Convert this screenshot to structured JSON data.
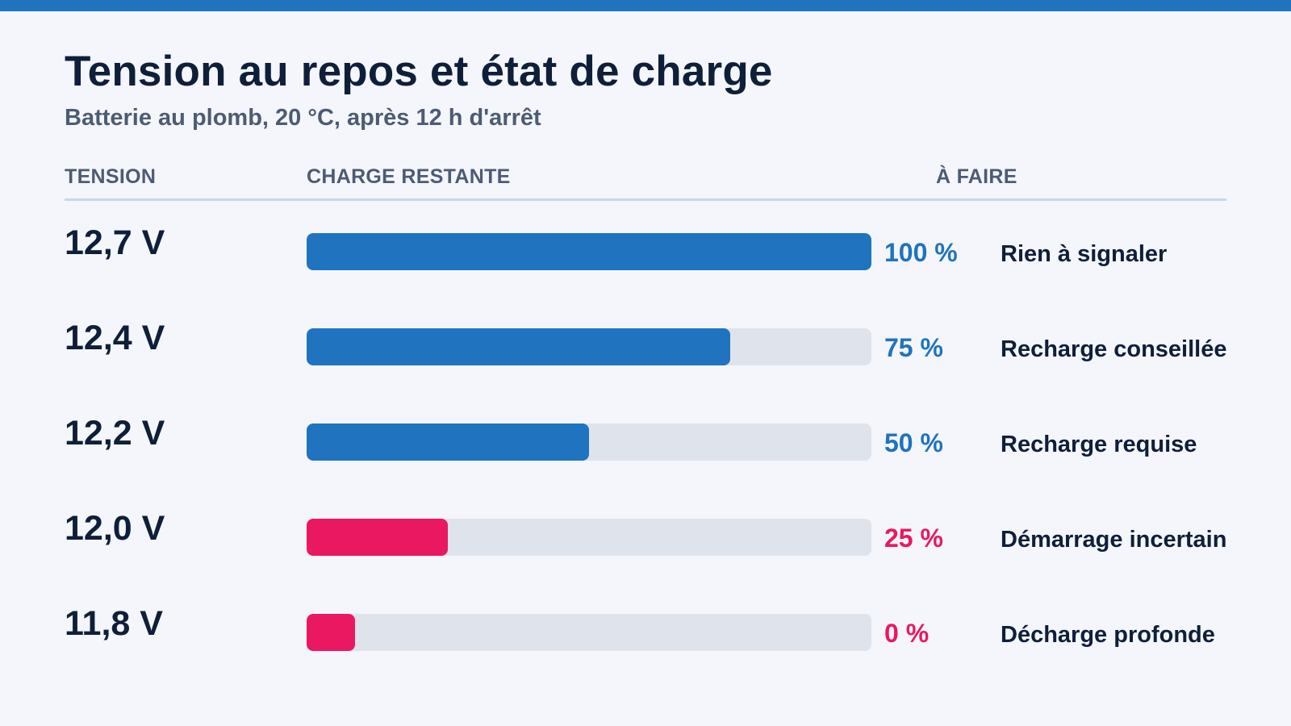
{
  "title": "Tension au repos et état de charge",
  "subtitle": "Batterie au plomb, 20 °C, après 12 h d'arrêt",
  "columns": {
    "tension": "TENSION",
    "charge": "CHARGE RESTANTE",
    "action": "À FAIRE"
  },
  "colors": {
    "accent": "#1f73bf",
    "alert": "#ea1860",
    "track": "#dfe3ec"
  },
  "chart_data": {
    "type": "bar",
    "orientation": "horizontal",
    "categories": [
      "12,7 V",
      "12,4 V",
      "12,2 V",
      "12,0 V",
      "11,8 V"
    ],
    "values": [
      100,
      75,
      50,
      25,
      0
    ],
    "value_labels": [
      "100 %",
      "75 %",
      "50 %",
      "25 %",
      "0 %"
    ],
    "actions": [
      "Rien à signaler",
      "Recharge conseillée",
      "Recharge requise",
      "Démarrage incertain",
      "Décharge profonde"
    ],
    "status": [
      "ok",
      "ok",
      "ok",
      "alert",
      "alert"
    ],
    "xlim": [
      0,
      100
    ],
    "grid": false,
    "title": "Tension au repos et état de charge",
    "subtitle": "Batterie au plomb, 20 °C, après 12 h d'arrêt",
    "xlabel": "CHARGE RESTANTE",
    "ylabel": "TENSION"
  }
}
